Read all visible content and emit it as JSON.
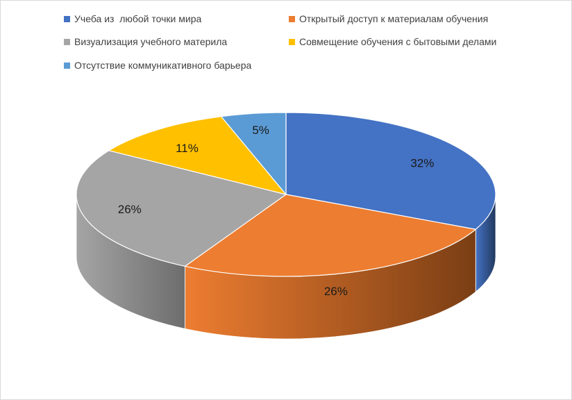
{
  "chart_data": {
    "type": "pie",
    "title": "",
    "legend_position": "top",
    "three_d": true,
    "categories": [
      "Учеба из  любой точки мира",
      "Открытый доступ к материалам обучения",
      "Визуализация учебного материла",
      "Совмещение обучения с бытовыми делами",
      "Отсутствие коммуникативного барьера"
    ],
    "values": [
      32,
      26,
      26,
      11,
      5
    ],
    "data_labels": [
      "32%",
      "26%",
      "26%",
      "11%",
      "5%"
    ],
    "colors": [
      "#4472c4",
      "#ed7d31",
      "#a5a5a5",
      "#ffc000",
      "#5b9bd5"
    ],
    "side_colors": [
      "#22395f",
      "#7a3e14",
      "#6d6d6d",
      "#8a6800",
      "#2e5a85"
    ]
  }
}
